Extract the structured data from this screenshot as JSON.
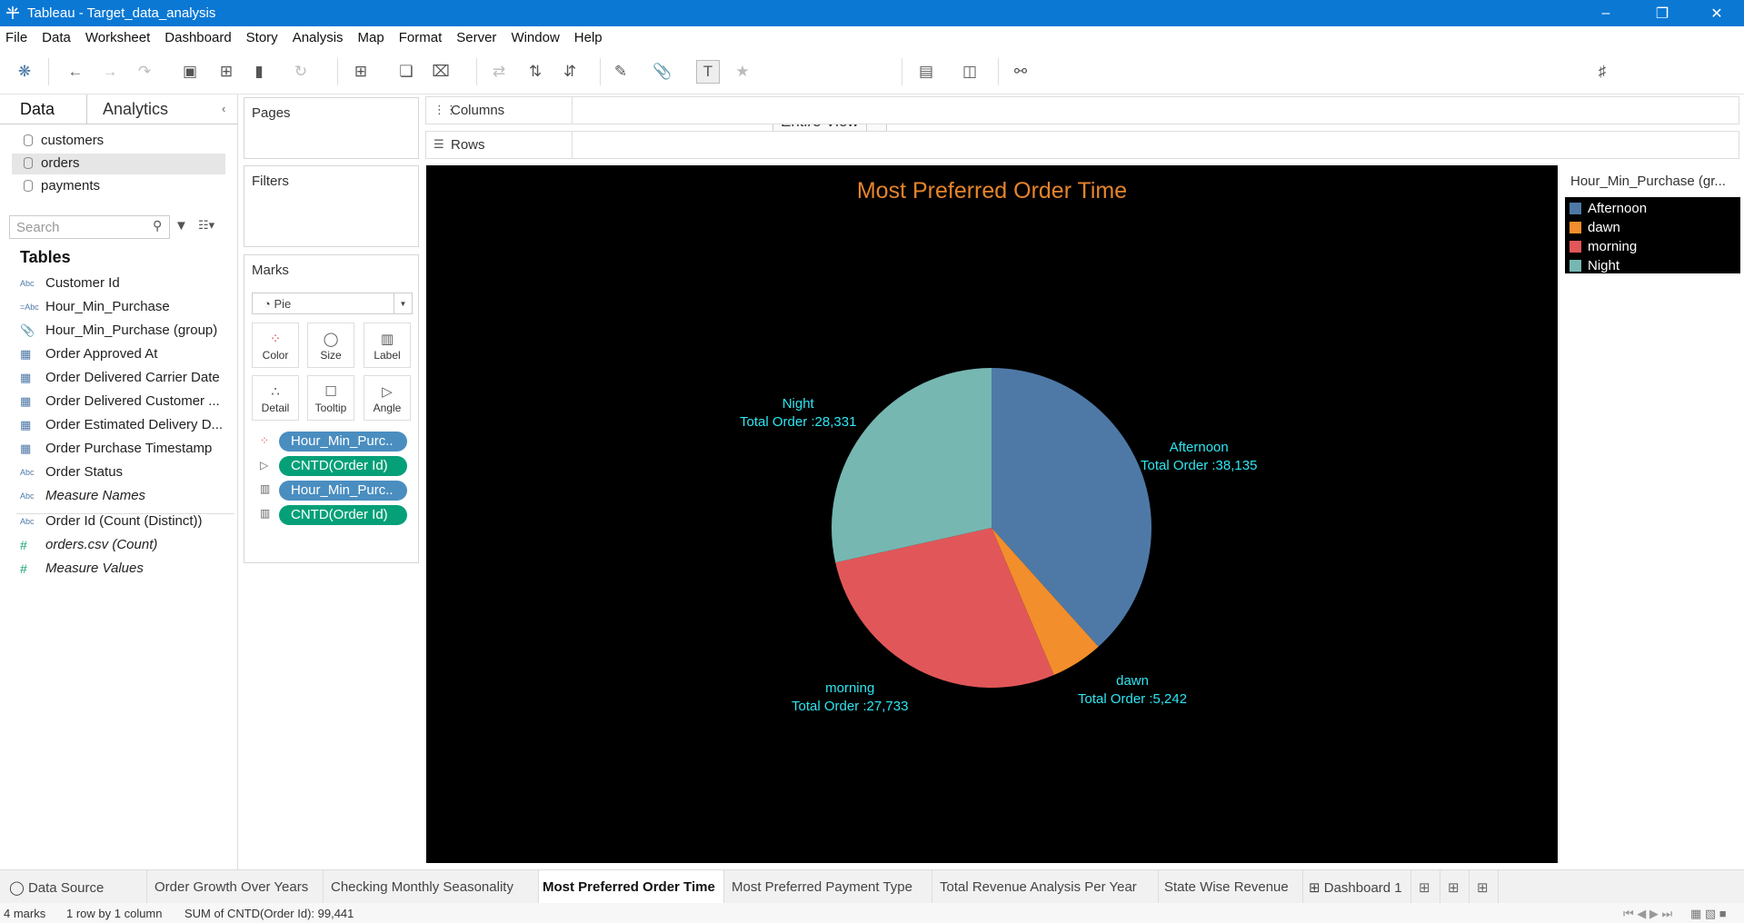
{
  "window": {
    "title": "Tableau - Target_data_analysis"
  },
  "menu": [
    "File",
    "Data",
    "Worksheet",
    "Dashboard",
    "Story",
    "Analysis",
    "Map",
    "Format",
    "Server",
    "Window",
    "Help"
  ],
  "toolbar": {
    "fit": "Entire View",
    "show_me": "Show Me"
  },
  "data_pane": {
    "tabs": {
      "data": "Data",
      "analytics": "Analytics"
    },
    "sources": [
      "customers",
      "orders",
      "payments"
    ],
    "search_placeholder": "Search",
    "tables_heading": "Tables",
    "fields": [
      {
        "type": "Abc",
        "name": "Customer Id"
      },
      {
        "type": "=Abc",
        "name": "Hour_Min_Purchase"
      },
      {
        "type": "group",
        "name": "Hour_Min_Purchase (group)"
      },
      {
        "type": "date",
        "name": "Order Approved At"
      },
      {
        "type": "date",
        "name": "Order Delivered Carrier Date"
      },
      {
        "type": "date",
        "name": "Order Delivered Customer ..."
      },
      {
        "type": "date",
        "name": "Order Estimated Delivery D..."
      },
      {
        "type": "date",
        "name": "Order Purchase Timestamp"
      },
      {
        "type": "Abc",
        "name": "Order Status"
      },
      {
        "type": "Abc",
        "name": "Measure Names"
      }
    ],
    "measures": [
      {
        "type": "Abc",
        "name": "Order Id (Count (Distinct))"
      },
      {
        "type": "#",
        "name": "orders.csv (Count)"
      },
      {
        "type": "#",
        "name": "Measure Values"
      }
    ]
  },
  "cards": {
    "pages": "Pages",
    "filters": "Filters",
    "marks": "Marks",
    "mark_type": "Pie"
  },
  "mark_buttons": [
    "Color",
    "Size",
    "Label",
    "Detail",
    "Tooltip",
    "Angle"
  ],
  "mark_pills": [
    "Hour_Min_Purc..",
    "CNTD(Order Id)",
    "Hour_Min_Purc..",
    "CNTD(Order Id)"
  ],
  "shelves": {
    "columns": "Columns",
    "rows": "Rows"
  },
  "legend": {
    "title": "Hour_Min_Purchase (gr...",
    "items": [
      {
        "label": "Afternoon",
        "color": "#4e79a7"
      },
      {
        "label": "dawn",
        "color": "#f28e2b"
      },
      {
        "label": "morning",
        "color": "#e15759"
      },
      {
        "label": "Night",
        "color": "#76b7b2"
      }
    ]
  },
  "chart_data": {
    "type": "pie",
    "title": "Most Preferred Order Time",
    "slices": [
      {
        "label": "Afternoon",
        "value": 38135,
        "text": "Total Order :38,135",
        "color": "#4e79a7"
      },
      {
        "label": "dawn",
        "value": 5242,
        "text": "Total Order :5,242",
        "color": "#f28e2b"
      },
      {
        "label": "morning",
        "value": 27733,
        "text": "Total Order :27,733",
        "color": "#e15759"
      },
      {
        "label": "Night",
        "value": 28331,
        "text": "Total Order :28,331",
        "color": "#76b7b2"
      }
    ]
  },
  "sheet_tabs": [
    "Data Source",
    "Order Growth Over Years",
    "Checking Monthly Seasonality",
    "Most Preferred Order Time",
    "Most Preferred Payment Type",
    "Total Revenue Analysis Per Year",
    "State Wise Revenue",
    "Dashboard 1"
  ],
  "active_tab": "Most Preferred Order Time",
  "status": {
    "marks": "4 marks",
    "dims": "1 row by 1 column",
    "sum": "SUM of CNTD(Order Id): 99,441"
  }
}
